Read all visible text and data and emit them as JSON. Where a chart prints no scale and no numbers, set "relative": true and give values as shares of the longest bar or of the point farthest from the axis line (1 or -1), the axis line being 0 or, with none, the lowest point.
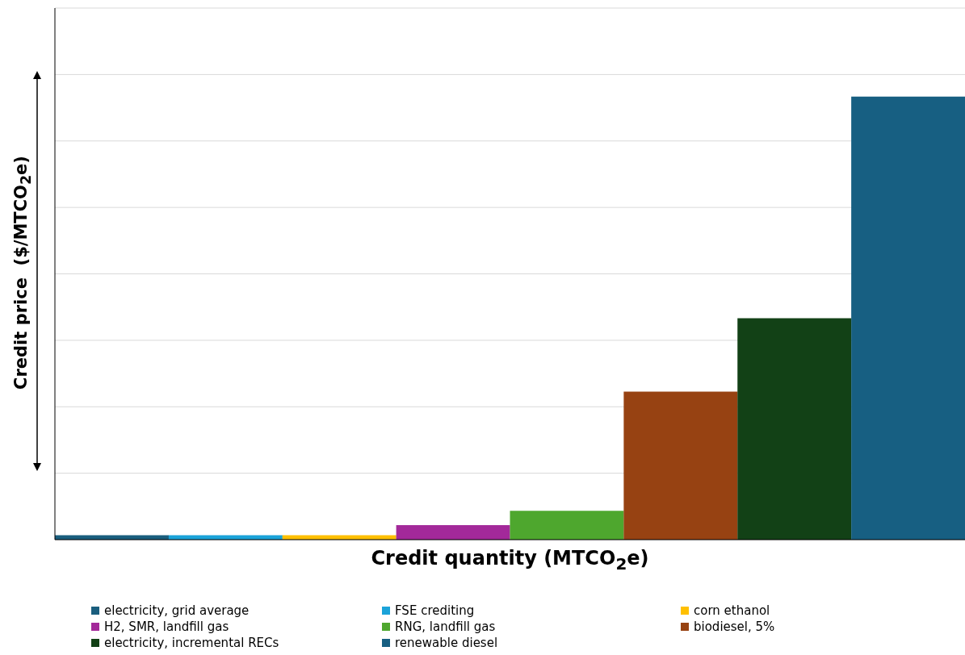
{
  "chart_data": {
    "type": "bar",
    "relative": true,
    "stacked": true,
    "grid": "y",
    "legend": "bottom",
    "xlabel": "Credit quantity (MTCO$_{2}$e)",
    "ylabel": "Credit price  ($/MTCO$_{2}$e)",
    "categories": [
      null,
      null,
      null,
      null,
      null,
      null,
      null,
      null
    ],
    "series": [
      {
        "name": "electricity, grid average",
        "color": "#1a5e7e",
        "values": [
          0.01,
          null,
          null,
          null,
          null,
          null,
          null,
          null
        ]
      },
      {
        "name": "FSE crediting",
        "color": "#1ba3d9",
        "values": [
          null,
          0.01,
          null,
          null,
          null,
          null,
          null,
          null
        ]
      },
      {
        "name": "corn ethanol",
        "color": "#ffc000",
        "values": [
          null,
          null,
          0.01,
          null,
          null,
          null,
          null,
          null
        ]
      },
      {
        "name": "H2, SMR, landfill gas",
        "color": "#a3299a",
        "values": [
          null,
          null,
          null,
          0.033,
          null,
          null,
          null,
          null
        ]
      },
      {
        "name": "RNG, landfill gas",
        "color": "#4ea72e",
        "values": [
          null,
          null,
          null,
          null,
          0.065,
          null,
          null,
          null
        ]
      },
      {
        "name": "biodiesel, 5%",
        "color": "#974212",
        "values": [
          null,
          null,
          null,
          null,
          null,
          0.334,
          null,
          null
        ]
      },
      {
        "name": "electricity, incremental RECs",
        "color": "#124116",
        "values": [
          null,
          null,
          null,
          null,
          null,
          null,
          0.5,
          null
        ]
      },
      {
        "name": "renewable diesel",
        "color": "#175f82",
        "values": [
          null,
          null,
          null,
          null,
          null,
          null,
          null,
          1
        ]
      }
    ]
  }
}
